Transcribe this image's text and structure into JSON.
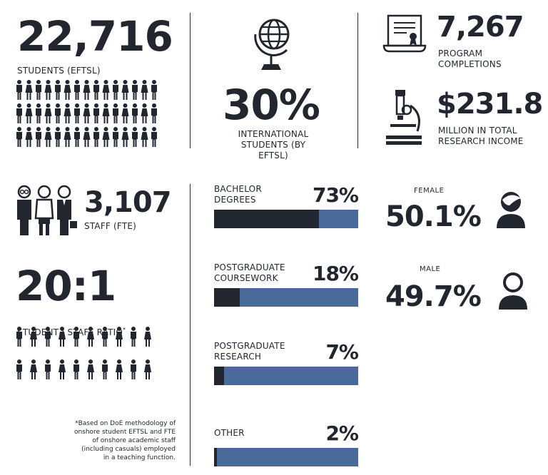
{
  "students": {
    "value": "22,716",
    "label": "STUDENTS (EFTSL)"
  },
  "international": {
    "value": "30%",
    "label": "INTERNATIONAL\nSTUDENTS (BY EFTSL)"
  },
  "completions": {
    "value": "7,267",
    "label": "PROGRAM\nCOMPLETIONS"
  },
  "research": {
    "value": "$231.8",
    "label": "MILLION IN TOTAL\nRESEARCH INCOME"
  },
  "staff": {
    "value": "3,107",
    "label": "STAFF (FTE)"
  },
  "ratio": {
    "value": "20:1",
    "label": "STUDENT : STAFF RATIO",
    "marker": "*"
  },
  "footnote": "*Based on DoE methodology of\nonshore student EFTSL and FTE\nof onshore academic staff\n(including casuals) employed\nin a teaching function.",
  "degrees": [
    {
      "label": "BACHELOR\nDEGREES",
      "percent_text": "73%",
      "value": 73
    },
    {
      "label": "POSTGRADUATE\nCOURSEWORK",
      "percent_text": "18%",
      "value": 18
    },
    {
      "label": "POSTGRADUATE\nRESEARCH",
      "percent_text": "7%",
      "value": 7
    },
    {
      "label": "OTHER",
      "percent_text": "2%",
      "value": 2
    }
  ],
  "gender": {
    "female": {
      "label": "FEMALE",
      "value": "50.1%"
    },
    "male": {
      "label": "MALE",
      "value": "49.7%"
    }
  },
  "colors": {
    "dark": "#22262f",
    "accent": "#4a6a9c"
  },
  "icons": [
    "globe-icon",
    "certificate-icon",
    "microscope-icon",
    "staff-group-icon",
    "female-person-icon",
    "male-person-icon",
    "person-icon"
  ]
}
